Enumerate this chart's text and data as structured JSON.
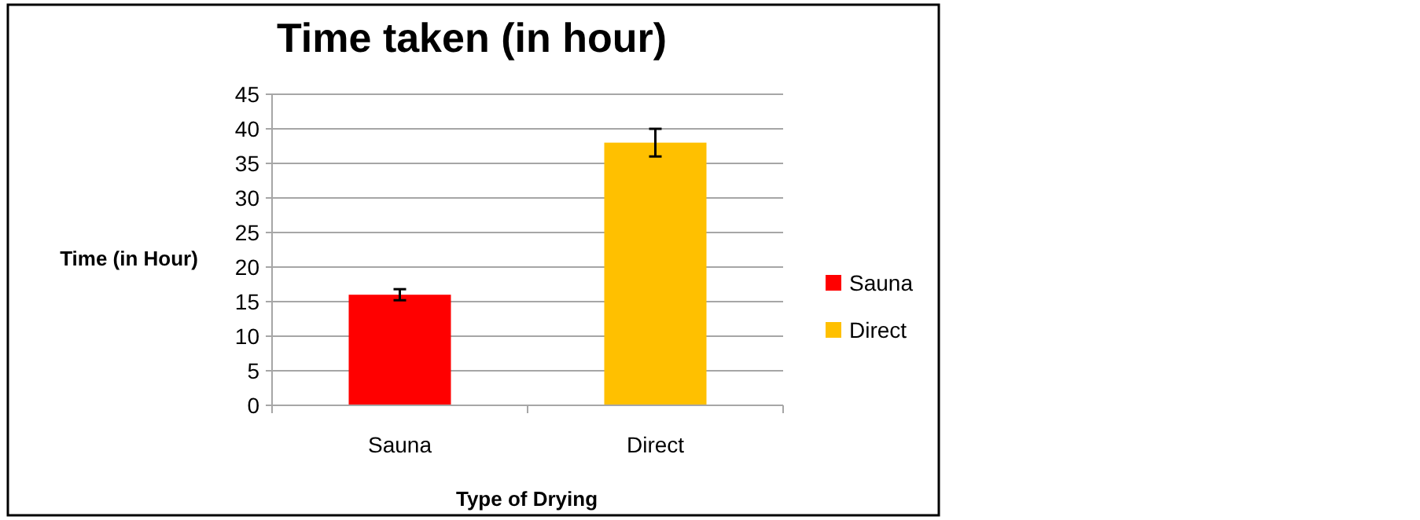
{
  "chart_data": {
    "type": "bar",
    "title": "Time taken (in hour)",
    "xlabel": "Type of Drying",
    "ylabel": "Time (in Hour)",
    "categories": [
      "Sauna",
      "Direct"
    ],
    "series": [
      {
        "name": "Sauna",
        "color": "#ff0000",
        "values": [
          16,
          null
        ],
        "errors": [
          0.8,
          null
        ]
      },
      {
        "name": "Direct",
        "color": "#ffc000",
        "values": [
          null,
          38
        ],
        "errors": [
          null,
          2
        ]
      }
    ],
    "ylim": [
      0,
      45
    ],
    "yticks": [
      0,
      5,
      10,
      15,
      20,
      25,
      30,
      35,
      40,
      45
    ],
    "grid": "y",
    "legend": "right"
  }
}
